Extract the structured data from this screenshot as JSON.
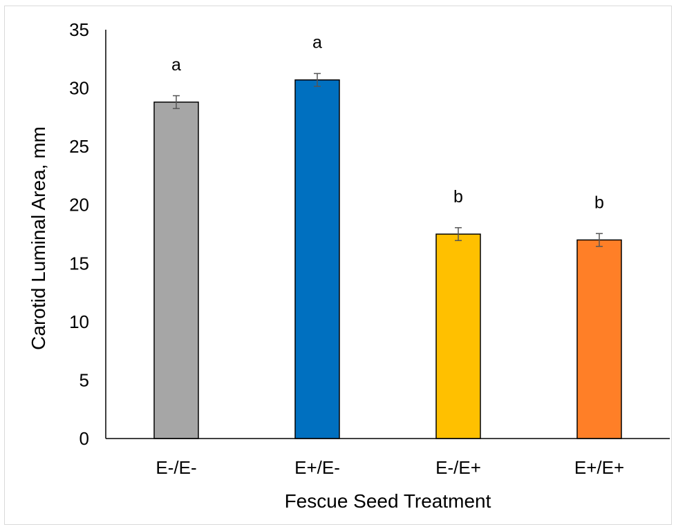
{
  "chart_data": {
    "type": "bar",
    "categories": [
      "E-/E-",
      "E+/E-",
      "E-/E+",
      "E+/E+"
    ],
    "values": [
      28.8,
      30.7,
      17.5,
      17.0
    ],
    "errors": [
      0.55,
      0.55,
      0.55,
      0.55
    ],
    "significance": [
      "a",
      "a",
      "b",
      "b"
    ],
    "colors": [
      "#a6a6a6",
      "#0070c0",
      "#ffc000",
      "#ff7f27"
    ],
    "title": "",
    "xlabel": "Fescue Seed Treatment",
    "ylabel": "Carotid Luminal Area, mm",
    "ylim": [
      0,
      35
    ],
    "yticks": [
      0,
      5,
      10,
      15,
      20,
      25,
      30,
      35
    ],
    "grid": false,
    "legend": "none"
  }
}
